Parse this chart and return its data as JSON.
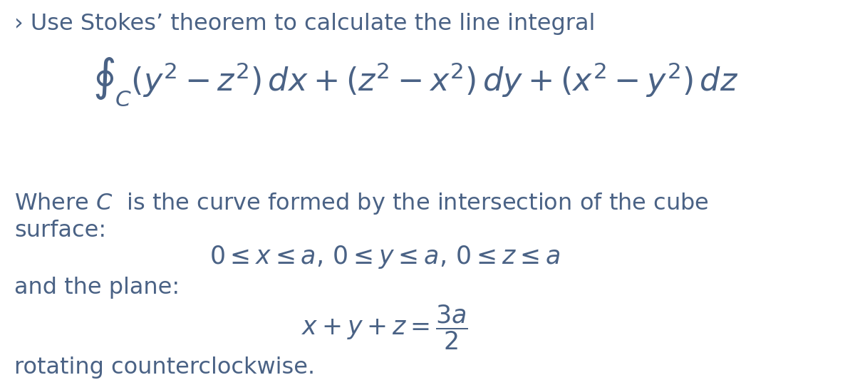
{
  "background_color": "#ffffff",
  "text_color": "#4a6285",
  "title_line": "› Use Stokes’ theorem to calculate the line integral",
  "integral_formula": "$\\oint_C (y^2 - z^2)\\,dx + (z^2 - x^2)\\,dy + (x^2 - y^2)\\,dz$",
  "where_text1": "Where $C$  is the curve formed by the intersection of the cube",
  "where_text2": "surface:",
  "constraint_text": "$0 \\leq x \\leq a,\\, 0 \\leq y \\leq a,\\, 0 \\leq z \\leq a$",
  "plane_text": "and the plane:",
  "plane_eq": "$x + y + z = \\dfrac{3a}{2}$",
  "rotating_text": "rotating counterclockwise.",
  "title_fontsize": 23,
  "body_fontsize": 23,
  "integral_fontsize": 32,
  "constraint_fontsize": 25,
  "plane_eq_fontsize": 25,
  "fig_width": 12.0,
  "fig_height": 5.4,
  "dpi": 100
}
